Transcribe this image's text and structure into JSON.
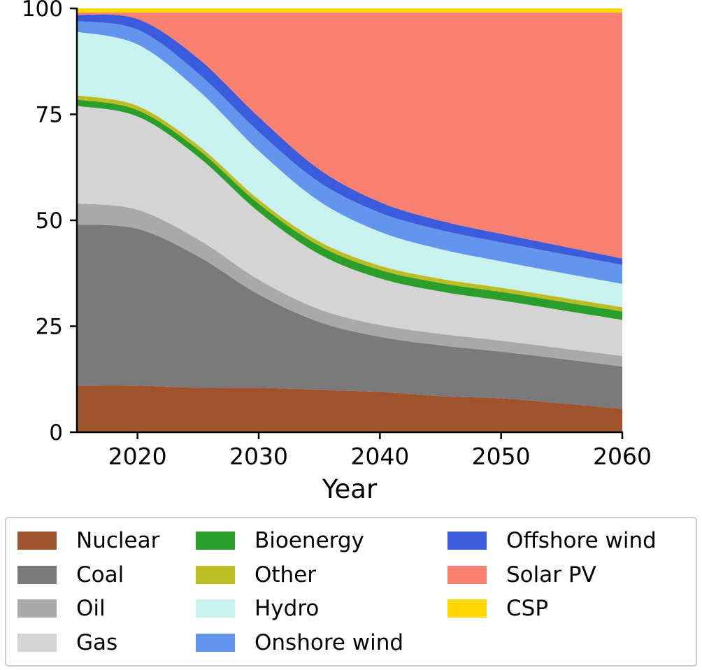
{
  "chart_data": {
    "type": "area",
    "stacked": true,
    "title": "",
    "xlabel": "Year",
    "ylabel": "",
    "xlim": [
      2015,
      2060
    ],
    "ylim": [
      0,
      100
    ],
    "xticks": [
      2020,
      2030,
      2040,
      2050,
      2060
    ],
    "yticks": [
      0,
      25,
      50,
      75,
      100
    ],
    "grid": false,
    "legend_position": "bottom",
    "x": [
      2015,
      2020,
      2025,
      2030,
      2035,
      2040,
      2045,
      2050,
      2055,
      2060
    ],
    "series": [
      {
        "name": "Nuclear",
        "color": "#A0522D",
        "values": [
          11,
          11,
          10.5,
          10.5,
          10,
          9.5,
          8.5,
          8,
          6.8,
          5.5
        ]
      },
      {
        "name": "Coal",
        "color": "#7a7a7a",
        "values": [
          38,
          37,
          31,
          22,
          16,
          13,
          12,
          11,
          10.5,
          10
        ]
      },
      {
        "name": "Oil",
        "color": "#a9a9a9",
        "values": [
          5,
          4.5,
          4,
          3.5,
          3,
          2.8,
          2.7,
          2.6,
          2.5,
          2.5
        ]
      },
      {
        "name": "Gas",
        "color": "#d4d4d4",
        "values": [
          23,
          22,
          19.5,
          16,
          13,
          11,
          10,
          9.5,
          9,
          8.5
        ]
      },
      {
        "name": "Bioenergy",
        "color": "#2a9d2a",
        "values": [
          1.5,
          1.5,
          1.7,
          1.9,
          2,
          2,
          2,
          2,
          2,
          2
        ]
      },
      {
        "name": "Other",
        "color": "#bcbd22",
        "values": [
          1,
          1,
          1,
          1,
          1,
          1,
          1,
          1,
          1,
          1
        ]
      },
      {
        "name": "Hydro",
        "color": "#c9f2ee",
        "values": [
          15,
          14.5,
          13,
          11.5,
          9.5,
          8,
          7,
          6.2,
          5.8,
          5.5
        ]
      },
      {
        "name": "Onshore wind",
        "color": "#6495ED",
        "values": [
          2.5,
          3.5,
          4,
          4.5,
          4.5,
          4.5,
          4.5,
          4.5,
          4.5,
          4.5
        ]
      },
      {
        "name": "Offshore wind",
        "color": "#3a5bdb",
        "values": [
          1.5,
          2.5,
          3.5,
          3.5,
          3,
          2.5,
          2.2,
          2,
          1.8,
          1.5
        ]
      },
      {
        "name": "Solar PV",
        "color": "#FA8072",
        "values": [
          0.5,
          1.5,
          10.8,
          24.6,
          37,
          44.7,
          49.1,
          52.2,
          55.1,
          58
        ]
      },
      {
        "name": "CSP",
        "color": "#FFD700",
        "values": [
          1,
          1,
          1,
          1,
          1,
          1,
          1,
          1,
          1,
          1
        ]
      }
    ]
  }
}
